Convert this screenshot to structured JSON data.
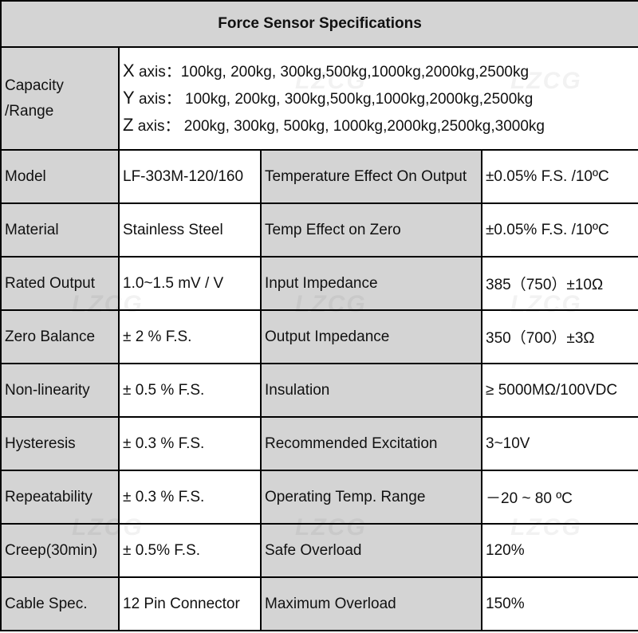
{
  "title": "Force Sensor Specifications",
  "capacity": {
    "label_line1": "Capacity",
    "label_line2": "/Range",
    "axes": [
      {
        "letter": "X",
        "label": " axis：",
        "values": "100kg, 200kg, 300kg,500kg,1000kg,2000kg,2500kg"
      },
      {
        "letter": "Y",
        "label": " axis：",
        "values": " 100kg, 200kg, 300kg,500kg,1000kg,2000kg,2500kg"
      },
      {
        "letter": "Z",
        "label": " axis：",
        "values": " 200kg, 300kg, 500kg, 1000kg,2000kg,2500kg,3000kg"
      }
    ]
  },
  "rows": [
    {
      "label1": "Model",
      "value1": "LF-303M-120/160",
      "label2": "Temperature Effect On Output",
      "value2": "±0.05% F.S. /10ºC"
    },
    {
      "label1": "Material",
      "value1": "Stainless Steel",
      "label2": "Temp Effect on Zero",
      "value2": "±0.05% F.S. /10ºC"
    },
    {
      "label1": "Rated Output",
      "value1": "1.0~1.5 mV / V",
      "label2": "Input Impedance",
      "value2": "385（750）±10Ω"
    },
    {
      "label1": "Zero Balance",
      "value1": "± 2 % F.S.",
      "label2": "Output  Impedance",
      "value2": "350（700）±3Ω"
    },
    {
      "label1": "Non-linearity",
      "value1": "± 0.5 % F.S.",
      "label2": "Insulation",
      "value2": "≥ 5000MΩ/100VDC"
    },
    {
      "label1": "Hysteresis",
      "value1": "± 0.3 % F.S.",
      "label2": "Recommended Excitation",
      "value2": "3~10V"
    },
    {
      "label1": "Repeatability",
      "value1": "± 0.3 % F.S.",
      "label2": "Operating Temp. Range",
      "value2": "－20 ~ 80 ºC"
    },
    {
      "label1": "Creep(30min)",
      "value1": "± 0.5% F.S.",
      "label2": "Safe Overload",
      "value2": "120%"
    },
    {
      "label1": "Cable Spec.",
      "value1": "12 Pin Connector",
      "label2": "Maximum Overload",
      "value2": "150%"
    }
  ],
  "watermark": "LZCG"
}
